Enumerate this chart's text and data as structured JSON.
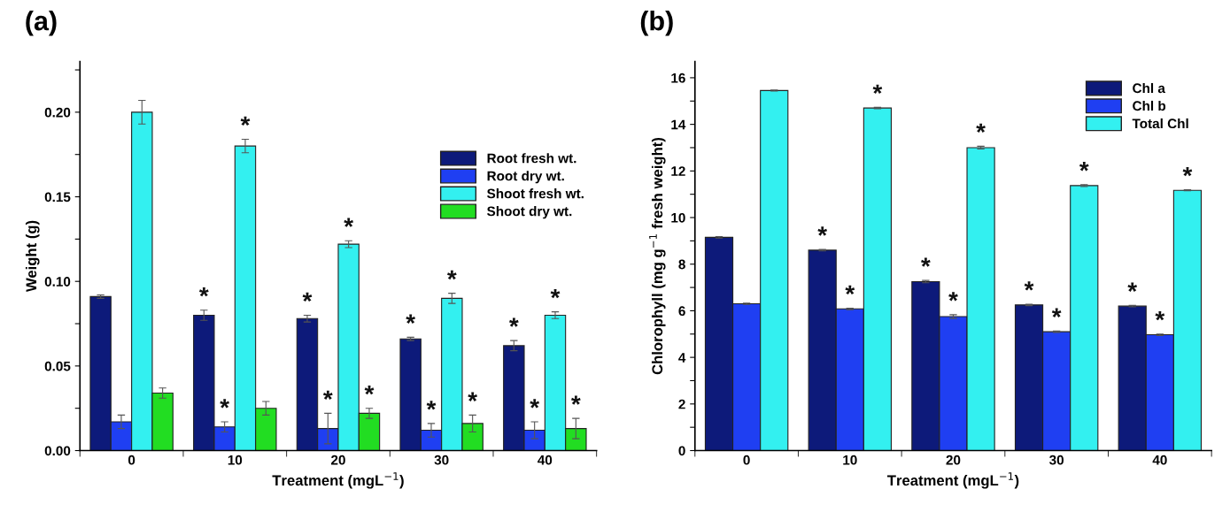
{
  "chart_data": [
    {
      "type": "bar",
      "title": "(a)",
      "xlabel": "Treatment (mgL$^{−1}$)",
      "ylabel": "Weight (g)",
      "categories": [
        "0",
        "10",
        "20",
        "30",
        "40"
      ],
      "series": [
        {
          "name": "Root fresh wt.",
          "color": "#0d1a7a",
          "values": [
            0.091,
            0.08,
            0.078,
            0.066,
            0.062
          ],
          "errors": [
            0.001,
            0.003,
            0.002,
            0.001,
            0.003
          ],
          "value_labels": [
            null,
            "*",
            "*",
            "*",
            "*"
          ]
        },
        {
          "name": "Root dry wt.",
          "color": "#1f3ff2",
          "values": [
            0.017,
            0.014,
            0.013,
            0.012,
            0.012
          ],
          "errors": [
            0.004,
            0.003,
            0.009,
            0.004,
            0.005
          ],
          "value_labels": [
            null,
            "*",
            "*",
            "*",
            "*"
          ]
        },
        {
          "name": "Shoot fresh wt.",
          "color": "#33f0f0",
          "values": [
            0.2,
            0.18,
            0.122,
            0.09,
            0.08
          ],
          "errors": [
            0.007,
            0.004,
            0.002,
            0.003,
            0.002
          ],
          "value_labels": [
            null,
            "*",
            "*",
            "*",
            "*"
          ]
        },
        {
          "name": "Shoot dry wt.",
          "color": "#22dd22",
          "values": [
            0.034,
            0.025,
            0.022,
            0.016,
            0.013
          ],
          "errors": [
            0.003,
            0.004,
            0.003,
            0.005,
            0.006
          ],
          "value_labels": [
            null,
            null,
            "*",
            "*",
            "*"
          ]
        }
      ],
      "ylim": [
        0,
        0.23
      ],
      "yticks": [
        {
          "value": 0,
          "label": "0.00"
        },
        {
          "value": 0.025,
          "label": null
        },
        {
          "value": 0.05,
          "label": "0.05"
        },
        {
          "value": 0.075,
          "label": null
        },
        {
          "value": 0.1,
          "label": "0.10"
        },
        {
          "value": 0.125,
          "label": null
        },
        {
          "value": 0.15,
          "label": "0.15"
        },
        {
          "value": 0.175,
          "label": null
        },
        {
          "value": 0.2,
          "label": "0.20"
        },
        {
          "value": 0.225,
          "label": null
        }
      ],
      "grid": false,
      "legend": "top right"
    },
    {
      "type": "bar",
      "title": "(b)",
      "xlabel": "Treatment (mgL$^{−1}$)",
      "ylabel": "Chlorophyll (mg g$^{−1}$ fresh weight)",
      "categories": [
        "0",
        "10",
        "20",
        "30",
        "40"
      ],
      "series": [
        {
          "name": "Chl a",
          "color": "#0d1a7a",
          "values": [
            9.15,
            8.6,
            7.25,
            6.25,
            6.2
          ],
          "errors": [
            0.03,
            0.03,
            0.05,
            0.03,
            0.03
          ],
          "value_labels": [
            null,
            "*",
            "*",
            "*",
            "*"
          ]
        },
        {
          "name": "Chl b",
          "color": "#1f3ff2",
          "values": [
            6.3,
            6.08,
            5.75,
            5.1,
            4.97
          ],
          "errors": [
            0.03,
            0.03,
            0.08,
            0.03,
            0.03
          ],
          "value_labels": [
            null,
            "*",
            "*",
            "*",
            "*"
          ]
        },
        {
          "name": "Total Chl",
          "color": "#33f0f0",
          "values": [
            15.45,
            14.7,
            13.0,
            11.37,
            11.17
          ],
          "errors": [
            0.02,
            0.03,
            0.06,
            0.04,
            0.02
          ],
          "value_labels": [
            null,
            "*",
            "*",
            "*",
            "*"
          ]
        }
      ],
      "ylim": [
        0,
        16.7
      ],
      "yticks": [
        0,
        {
          "value": 1,
          "label": null
        },
        2,
        {
          "value": 3,
          "label": null
        },
        4,
        {
          "value": 5,
          "label": null
        },
        6,
        {
          "value": 7,
          "label": null
        },
        8,
        {
          "value": 9,
          "label": null
        },
        10,
        {
          "value": 11,
          "label": null
        },
        12,
        {
          "value": 13,
          "label": null
        },
        14,
        {
          "value": 15,
          "label": null
        },
        16
      ],
      "grid": false,
      "legend": "top right"
    }
  ]
}
